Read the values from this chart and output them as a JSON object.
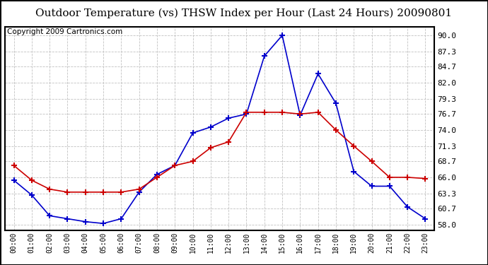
{
  "title": "Outdoor Temperature (vs) THSW Index per Hour (Last 24 Hours) 20090801",
  "copyright": "Copyright 2009 Cartronics.com",
  "hours": [
    "00:00",
    "01:00",
    "02:00",
    "03:00",
    "04:00",
    "05:00",
    "06:00",
    "07:00",
    "08:00",
    "09:00",
    "10:00",
    "11:00",
    "12:00",
    "13:00",
    "14:00",
    "15:00",
    "16:00",
    "17:00",
    "18:00",
    "19:00",
    "20:00",
    "21:00",
    "22:00",
    "23:00"
  ],
  "temp": [
    68.0,
    65.5,
    64.0,
    63.5,
    63.5,
    63.5,
    63.5,
    64.0,
    66.0,
    68.0,
    68.7,
    71.0,
    72.0,
    77.0,
    77.0,
    77.0,
    76.7,
    77.0,
    74.0,
    71.3,
    68.7,
    66.0,
    66.0,
    65.8
  ],
  "thsw": [
    65.5,
    63.0,
    59.5,
    59.0,
    58.5,
    58.2,
    59.0,
    63.5,
    66.5,
    68.0,
    73.5,
    74.5,
    76.0,
    76.7,
    86.5,
    90.0,
    76.5,
    83.5,
    78.5,
    67.0,
    64.5,
    64.5,
    61.0,
    59.0
  ],
  "yticks": [
    58.0,
    60.7,
    63.3,
    66.0,
    68.7,
    71.3,
    74.0,
    76.7,
    79.3,
    82.0,
    84.7,
    87.3,
    90.0
  ],
  "ylim": [
    57.0,
    91.5
  ],
  "temp_color": "#cc0000",
  "thsw_color": "#0000cc",
  "bg_color": "#ffffff",
  "grid_color": "#bbbbbb",
  "title_fontsize": 11,
  "copyright_fontsize": 7.5
}
